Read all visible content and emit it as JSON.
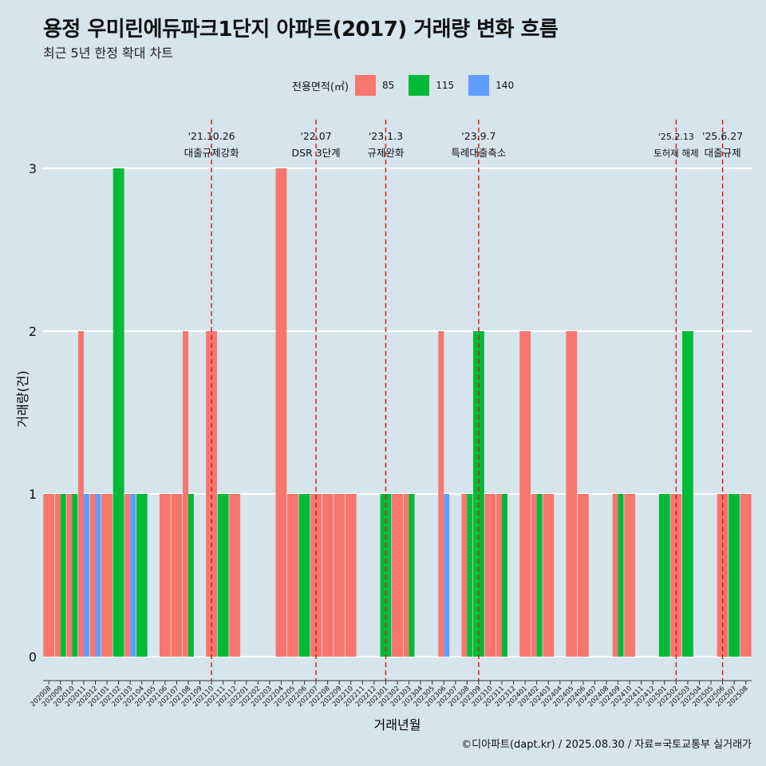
{
  "title": "용정 우미린에듀파크1단지 아파트(2017) 거래량 변화 흐름",
  "subtitle": "최근 5년 한정 확대 차트",
  "caption": "©디아파트(dapt.kr) / 2025.08.30 / 자료=국토교통부 실거래가",
  "legend": {
    "title": "전용면적(㎡)",
    "items": [
      {
        "label": "85",
        "color": "#f8766d"
      },
      {
        "label": "115",
        "color": "#00ba38"
      },
      {
        "label": "140",
        "color": "#619cff"
      }
    ]
  },
  "chart_data": {
    "type": "bar",
    "xlabel": "거래년월",
    "ylabel": "거래량(건)",
    "ylim": [
      0,
      3
    ],
    "yticks": [
      0,
      1,
      2,
      3
    ],
    "grid": "horizontal",
    "categories": [
      "202008",
      "202009",
      "202010",
      "202011",
      "202012",
      "202101",
      "202102",
      "202103",
      "202104",
      "202105",
      "202106",
      "202107",
      "202108",
      "202109",
      "202110",
      "202111",
      "202112",
      "202201",
      "202202",
      "202203",
      "202204",
      "202205",
      "202206",
      "202207",
      "202208",
      "202209",
      "202210",
      "202211",
      "202212",
      "202301",
      "202302",
      "202303",
      "202304",
      "202305",
      "202306",
      "202307",
      "202308",
      "202309",
      "202310",
      "202311",
      "202312",
      "202401",
      "202402",
      "202403",
      "202404",
      "202405",
      "202406",
      "202407",
      "202408",
      "202409",
      "202410",
      "202411",
      "202412",
      "202501",
      "202502",
      "202503",
      "202504",
      "202505",
      "202506",
      "202507",
      "202508"
    ],
    "series": [
      {
        "name": "85",
        "color": "#f8766d",
        "values": [
          1,
          1,
          1,
          2,
          1,
          1,
          0,
          1,
          0,
          0,
          1,
          1,
          2,
          0,
          2,
          0,
          1,
          0,
          0,
          0,
          3,
          1,
          0,
          1,
          1,
          1,
          1,
          0,
          0,
          0,
          1,
          1,
          0,
          0,
          2,
          0,
          1,
          0,
          1,
          1,
          0,
          2,
          1,
          1,
          0,
          2,
          1,
          0,
          0,
          1,
          1,
          0,
          0,
          0,
          1,
          0,
          0,
          0,
          1,
          0,
          1
        ]
      },
      {
        "name": "115",
        "color": "#00ba38",
        "values": [
          0,
          1,
          1,
          0,
          0,
          0,
          3,
          0,
          1,
          0,
          0,
          0,
          1,
          0,
          0,
          1,
          0,
          0,
          0,
          0,
          0,
          0,
          1,
          0,
          0,
          0,
          0,
          0,
          0,
          1,
          0,
          1,
          0,
          0,
          0,
          0,
          1,
          2,
          0,
          1,
          0,
          0,
          1,
          0,
          0,
          0,
          0,
          0,
          0,
          1,
          0,
          0,
          0,
          1,
          0,
          2,
          0,
          0,
          0,
          1,
          0
        ]
      },
      {
        "name": "140",
        "color": "#619cff",
        "values": [
          0,
          0,
          0,
          1,
          1,
          0,
          0,
          1,
          0,
          0,
          0,
          0,
          0,
          0,
          0,
          0,
          0,
          0,
          0,
          0,
          0,
          0,
          0,
          0,
          0,
          0,
          0,
          0,
          0,
          0,
          0,
          0,
          0,
          0,
          1,
          0,
          0,
          0,
          0,
          0,
          0,
          0,
          0,
          0,
          0,
          0,
          0,
          0,
          0,
          0,
          0,
          0,
          0,
          0,
          0,
          0,
          0,
          0,
          0,
          0,
          0
        ]
      }
    ],
    "events": [
      {
        "date": "'21.10.26",
        "label": "대출규제강화",
        "category": "202110"
      },
      {
        "date": "'22.07",
        "label": "DSR 3단계",
        "category": "202207"
      },
      {
        "date": "'23.1.3",
        "label": "규제완화",
        "category": "202301"
      },
      {
        "date": "'23.9.7",
        "label": "특례대출축소",
        "category": "202309"
      },
      {
        "date": "'25.2.13",
        "label": "토허제 해제",
        "category": "202502"
      },
      {
        "date": "'25.6.27",
        "label": "대출규제",
        "category": "202506"
      }
    ]
  }
}
